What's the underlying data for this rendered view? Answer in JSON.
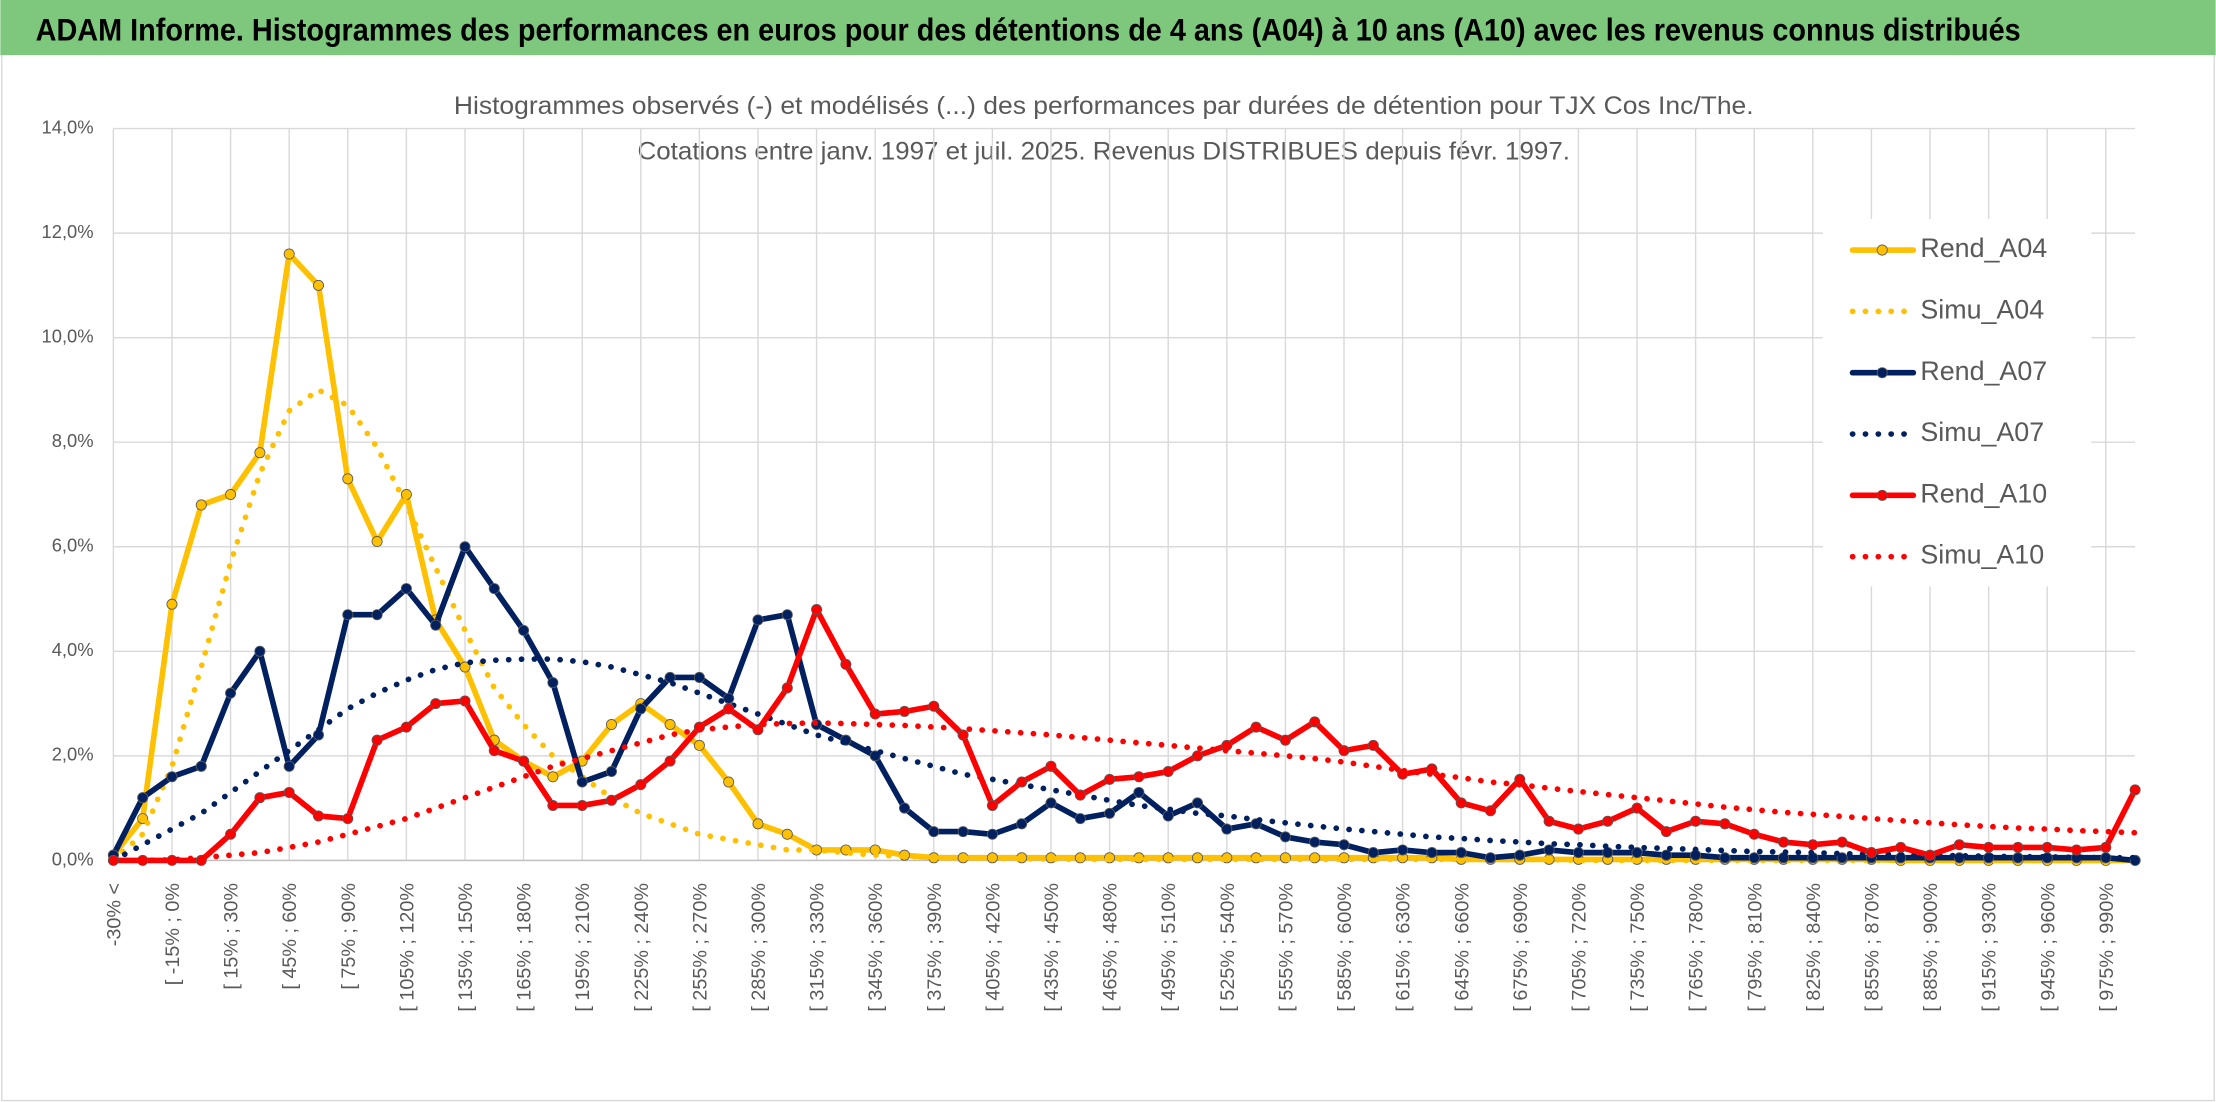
{
  "chart_data": {
    "type": "line",
    "header": "ADAM Informe. Histogrammes des performances en euros pour des détentions de 4 ans (A04) à 10 ans (A10) avec les revenus connus distribués",
    "title": "Histogrammes observés (-) et modélisés (...) des performances par durées de détention pour TJX Cos Inc/The.",
    "subtitle": "Cotations entre janv. 1997 et juil. 2025. Revenus DISTRIBUES depuis févr. 1997.",
    "categories": [
      "-30% <",
      null,
      "[ -15% ; 0%",
      null,
      "[ 15% ; 30%",
      null,
      "[ 45% ; 60%",
      null,
      "[ 75% ; 90%",
      null,
      "[ 105% ; 120%",
      null,
      "[ 135% ; 150%",
      null,
      "[ 165% ; 180%",
      null,
      "[ 195% ; 210%",
      null,
      "[ 225% ; 240%",
      null,
      "[ 255% ; 270%",
      null,
      "[ 285% ; 300%",
      null,
      "[ 315% ; 330%",
      null,
      "[ 345% ; 360%",
      null,
      "[ 375% ; 390%",
      null,
      "[ 405% ; 420%",
      null,
      "[ 435% ; 450%",
      null,
      "[ 465% ; 480%",
      null,
      "[ 495% ; 510%",
      null,
      "[ 525% ; 540%",
      null,
      "[ 555% ; 570%",
      null,
      "[ 585% ; 600%",
      null,
      "[ 615% ; 630%",
      null,
      "[ 645% ; 660%",
      null,
      "[ 675% ; 690%",
      null,
      "[ 705% ; 720%",
      null,
      "[ 735% ; 750%",
      null,
      "[ 765% ; 780%",
      null,
      "[ 795% ; 810%",
      null,
      "[ 825% ; 840%",
      null,
      "[ 855% ; 870%",
      null,
      "[ 885% ; 900%",
      null,
      "[ 915% ; 930%",
      null,
      "[ 945% ; 960%",
      null,
      "[ 975% ; 990%",
      null
    ],
    "ylim": [
      0,
      14
    ],
    "yticks": [
      {
        "value": 0,
        "label": "0,0%"
      },
      {
        "value": 2,
        "label": "2,0%"
      },
      {
        "value": 4,
        "label": "4,0%"
      },
      {
        "value": 6,
        "label": "6,0%"
      },
      {
        "value": 8,
        "label": "8,0%"
      },
      {
        "value": 10,
        "label": "10,0%"
      },
      {
        "value": 12,
        "label": "12,0%"
      },
      {
        "value": 14,
        "label": "14,0%"
      }
    ],
    "grid": true,
    "legend": "right",
    "series": [
      {
        "name": "Rend_A04",
        "color": "#ffc000",
        "style": "solid",
        "marker": true,
        "values": [
          0.1,
          0.8,
          4.9,
          6.8,
          7.0,
          7.8,
          11.6,
          11.0,
          7.3,
          6.1,
          7.0,
          4.6,
          3.7,
          2.3,
          1.9,
          1.6,
          1.9,
          2.6,
          3.0,
          2.6,
          2.2,
          1.5,
          0.7,
          0.5,
          0.2,
          0.2,
          0.2,
          0.1,
          0.05,
          0.05,
          0.05,
          0.05,
          0.05,
          0.05,
          0.05,
          0.05,
          0.05,
          0.05,
          0.05,
          0.05,
          0.05,
          0.05,
          0.05,
          0.05,
          0.05,
          0.05,
          0.02,
          0.02,
          0.02,
          0.02,
          0.02,
          0.02,
          0.02,
          0.02,
          0.02,
          0.02,
          0.02,
          0.02,
          0.02,
          0.02,
          0.02,
          0,
          0,
          0,
          0,
          0,
          0,
          0,
          0,
          0
        ]
      },
      {
        "name": "Simu_A04",
        "color": "#ffc000",
        "style": "dotted",
        "marker": false,
        "values": [
          0,
          0.5,
          1.8,
          3.7,
          5.7,
          7.4,
          8.6,
          9.0,
          8.7,
          7.9,
          6.8,
          5.6,
          4.4,
          3.3,
          2.6,
          2.0,
          1.6,
          1.2,
          0.9,
          0.7,
          0.5,
          0.4,
          0.3,
          0.2,
          0.2,
          0.15,
          0.1,
          0.08,
          0.06,
          0.05,
          0.04,
          0.03,
          0.03,
          0.02,
          0.02,
          0.02,
          0.02,
          0.02,
          0.02,
          0.02,
          0.02,
          0.02,
          0.02,
          0.02,
          0.02,
          0.02,
          0.02,
          0.02,
          0.02,
          0.02,
          0,
          0,
          0,
          0,
          0,
          0,
          0,
          0,
          0,
          0,
          0,
          0,
          0,
          0,
          0,
          0,
          0,
          0,
          0,
          0
        ]
      },
      {
        "name": "Rend_A07",
        "color": "#002060",
        "style": "solid",
        "marker": true,
        "values": [
          0.1,
          1.2,
          1.6,
          1.8,
          3.2,
          4.0,
          1.8,
          2.4,
          4.7,
          4.7,
          5.2,
          4.5,
          6.0,
          5.2,
          4.4,
          3.4,
          1.5,
          1.7,
          2.9,
          3.5,
          3.5,
          3.1,
          4.6,
          4.7,
          2.6,
          2.3,
          2.0,
          1.0,
          0.55,
          0.55,
          0.5,
          0.7,
          1.1,
          0.8,
          0.9,
          1.3,
          0.85,
          1.1,
          0.6,
          0.7,
          0.45,
          0.35,
          0.3,
          0.15,
          0.2,
          0.15,
          0.15,
          0.05,
          0.1,
          0.2,
          0.15,
          0.15,
          0.15,
          0.1,
          0.1,
          0.05,
          0.05,
          0.05,
          0.05,
          0.05,
          0.05,
          0.05,
          0.05,
          0.05,
          0.05,
          0.05,
          0.05,
          0.05,
          0.05,
          0
        ]
      },
      {
        "name": "Simu_A07",
        "color": "#002060",
        "style": "dotted",
        "marker": false,
        "values": [
          0,
          0.3,
          0.6,
          0.9,
          1.3,
          1.7,
          2.1,
          2.5,
          2.9,
          3.2,
          3.45,
          3.65,
          3.78,
          3.83,
          3.85,
          3.85,
          3.8,
          3.7,
          3.55,
          3.4,
          3.2,
          3.0,
          2.8,
          2.6,
          2.4,
          2.25,
          2.1,
          1.95,
          1.8,
          1.65,
          1.55,
          1.45,
          1.35,
          1.25,
          1.15,
          1.05,
          0.98,
          0.9,
          0.85,
          0.78,
          0.72,
          0.66,
          0.6,
          0.55,
          0.5,
          0.45,
          0.42,
          0.38,
          0.35,
          0.32,
          0.3,
          0.27,
          0.25,
          0.23,
          0.21,
          0.19,
          0.17,
          0.16,
          0.15,
          0.13,
          0.12,
          0.11,
          0.1,
          0.09,
          0.08,
          0.07,
          0.07,
          0.06,
          0.05,
          0.05
        ]
      },
      {
        "name": "Rend_A10",
        "color": "#ff0000",
        "style": "solid",
        "marker": true,
        "values": [
          0,
          0,
          0,
          0,
          0.5,
          1.2,
          1.3,
          0.85,
          0.8,
          2.3,
          2.55,
          3.0,
          3.05,
          2.1,
          1.9,
          1.05,
          1.05,
          1.15,
          1.45,
          1.9,
          2.55,
          2.9,
          2.5,
          3.3,
          4.8,
          3.75,
          2.8,
          2.85,
          2.95,
          2.4,
          1.05,
          1.5,
          1.8,
          1.25,
          1.55,
          1.6,
          1.7,
          2.0,
          2.2,
          2.55,
          2.3,
          2.65,
          2.1,
          2.2,
          1.65,
          1.75,
          1.1,
          0.95,
          1.55,
          0.75,
          0.6,
          0.75,
          1.0,
          0.55,
          0.75,
          0.7,
          0.5,
          0.35,
          0.3,
          0.35,
          0.15,
          0.25,
          0.1,
          0.3,
          0.25,
          0.25,
          0.25,
          0.2,
          0.25,
          1.35
        ]
      },
      {
        "name": "Simu_A10",
        "color": "#ff0000",
        "style": "dotted",
        "marker": false,
        "values": [
          0,
          0,
          0.01,
          0.05,
          0.1,
          0.15,
          0.25,
          0.35,
          0.5,
          0.65,
          0.8,
          1.0,
          1.2,
          1.4,
          1.6,
          1.8,
          1.95,
          2.1,
          2.25,
          2.4,
          2.5,
          2.55,
          2.6,
          2.62,
          2.63,
          2.62,
          2.6,
          2.58,
          2.55,
          2.52,
          2.48,
          2.44,
          2.4,
          2.35,
          2.3,
          2.25,
          2.2,
          2.15,
          2.1,
          2.05,
          2.0,
          1.95,
          1.88,
          1.8,
          1.72,
          1.65,
          1.58,
          1.5,
          1.45,
          1.38,
          1.32,
          1.26,
          1.2,
          1.14,
          1.08,
          1.02,
          0.97,
          0.92,
          0.88,
          0.84,
          0.8,
          0.76,
          0.72,
          0.68,
          0.65,
          0.62,
          0.6,
          0.57,
          0.55,
          0.53
        ]
      }
    ]
  }
}
